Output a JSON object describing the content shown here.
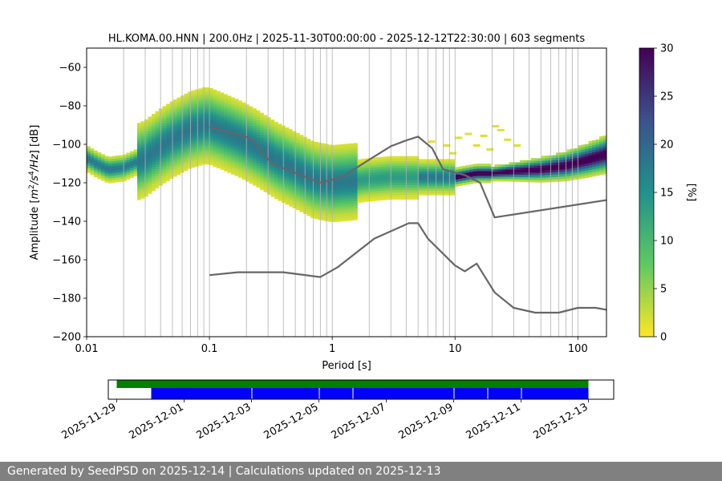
{
  "chart_data": {
    "type": "heatmap",
    "title": "HL.KOMA.00.HNN | 200.0Hz | 2025-11-30T00:00:00 - 2025-12-12T22:30:00 | 603 segments",
    "xlabel": "Period [s]",
    "ylabel": "Amplitude [m²/s⁴/Hz] [dB]",
    "x_scale": "log",
    "xlim": [
      0.01,
      171
    ],
    "ylim": [
      -200,
      -50
    ],
    "x_ticks": [
      {
        "value": 0.01,
        "label": "0.01"
      },
      {
        "value": 0.1,
        "label": "0.1"
      },
      {
        "value": 1,
        "label": "1"
      },
      {
        "value": 10,
        "label": "10"
      },
      {
        "value": 100,
        "label": "100"
      }
    ],
    "y_ticks": [
      -200,
      -180,
      -160,
      -140,
      -120,
      -100,
      -80,
      -60
    ],
    "grid": "vertical minor + major lines on period axis",
    "colorbar": {
      "label": "[%]",
      "range": [
        0,
        30
      ],
      "ticks": [
        0,
        5,
        10,
        15,
        20,
        25,
        30
      ],
      "colormap": "viridis_r",
      "colors": [
        "#fde725",
        "#5ec962",
        "#21918c",
        "#3b528b",
        "#440154"
      ]
    },
    "psd_mode": {
      "x": [
        0.01,
        0.012,
        0.015,
        0.02,
        0.03,
        0.04,
        0.05,
        0.07,
        0.09,
        0.1,
        0.13,
        0.18,
        0.25,
        0.35,
        0.5,
        0.7,
        1,
        1.5,
        2,
        3,
        4,
        5,
        6,
        8,
        10,
        15,
        20,
        30,
        50,
        80,
        120,
        171
      ],
      "y": [
        -107,
        -110,
        -113,
        -112,
        -107,
        -101,
        -97,
        -92,
        -90,
        -90,
        -93,
        -97,
        -102,
        -108,
        -113,
        -118,
        -120,
        -119,
        -118,
        -117,
        -117,
        -117,
        -117,
        -117,
        -117,
        -115,
        -115,
        -114,
        -113,
        -111,
        -108,
        -105
      ]
    },
    "noise_model_high": {
      "name": "",
      "x": [
        0.8,
        1.2,
        2,
        3,
        4,
        5,
        6.5,
        8,
        12,
        16,
        21,
        171
      ],
      "y": [
        -120,
        -117,
        -108,
        -101,
        -98,
        -96,
        -102,
        -113,
        -116,
        -120,
        -138,
        -129
      ]
    },
    "noise_model_upper_left": {
      "x": [
        0.1,
        0.22,
        0.32,
        0.8
      ],
      "y": [
        -91,
        -97,
        -110,
        -120
      ]
    },
    "noise_model_low": {
      "x": [
        0.1,
        0.17,
        0.4,
        0.8,
        1.1,
        2.2,
        4.2,
        5,
        6,
        10,
        12,
        15,
        21,
        30,
        45,
        70,
        100,
        140,
        171
      ],
      "y": [
        -168,
        -166.5,
        -166.5,
        -169,
        -164,
        -149,
        -141,
        -141,
        -149,
        -163,
        -166,
        -162,
        -177,
        -185,
        -187.5,
        -187.5,
        -185,
        -185,
        -186
      ]
    },
    "timeline": {
      "tick_labels": [
        "2025-11-29",
        "2025-12-01",
        "2025-12-03",
        "2025-12-05",
        "2025-12-07",
        "2025-12-09",
        "2025-12-11",
        "2025-12-13"
      ],
      "start": "2025-11-28T18:00",
      "end": "2025-12-13T18:00",
      "available": {
        "start": "2025-11-29",
        "end": "2025-12-13",
        "color": "#008000"
      },
      "used_segments": [
        {
          "start": "2025-11-30",
          "end": "2025-12-03"
        },
        {
          "start": "2025-12-03",
          "end": "2025-12-05"
        },
        {
          "start": "2025-12-05",
          "end": "2025-12-06"
        },
        {
          "start": "2025-12-06",
          "end": "2025-12-09"
        },
        {
          "start": "2025-12-09",
          "end": "2025-12-10"
        },
        {
          "start": "2025-12-10",
          "end": "2025-12-11"
        },
        {
          "start": "2025-12-11",
          "end": "2025-12-13"
        }
      ],
      "used_color": "#0000ff"
    }
  },
  "footer": {
    "text": "Generated by SeedPSD on 2025-12-14 | Calculations updated on 2025-12-13"
  }
}
